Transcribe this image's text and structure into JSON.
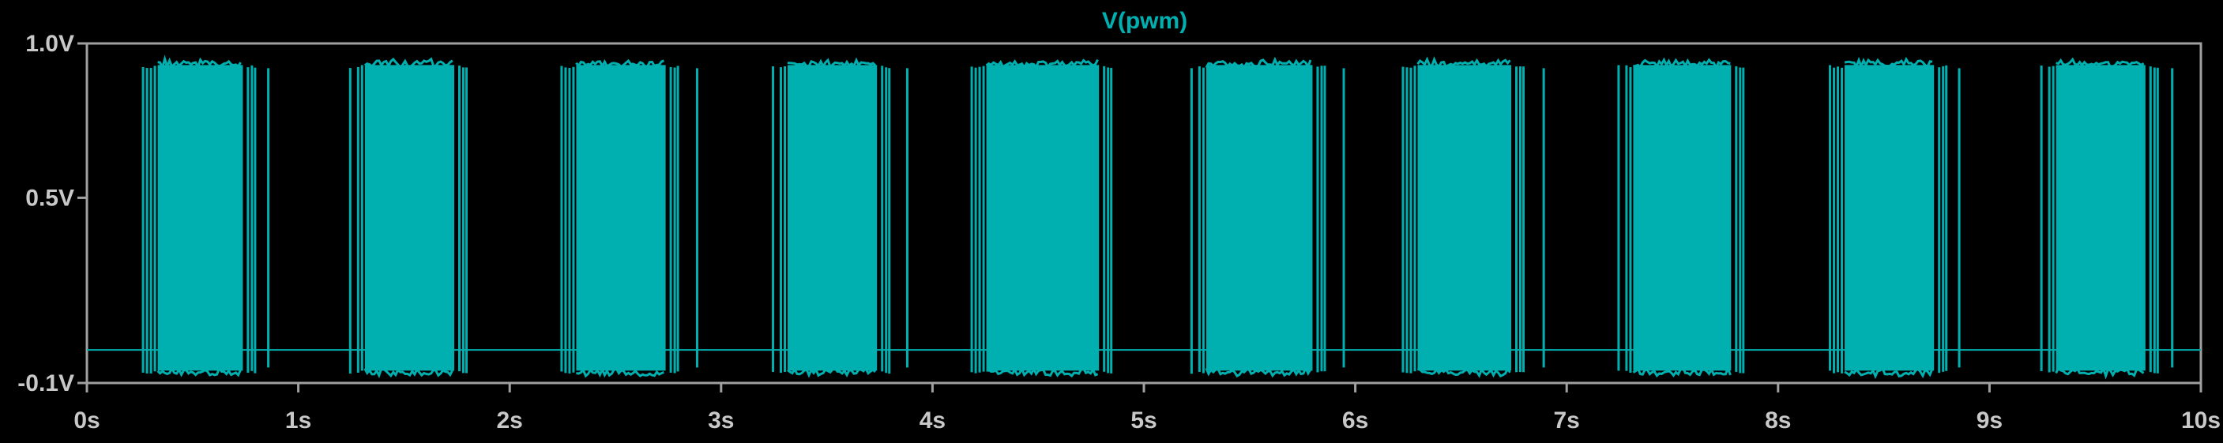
{
  "colors": {
    "background": "#000000",
    "trace": "#00b0b0",
    "axis": "#a0a0a0",
    "label": "#c8c8c8"
  },
  "chart_data": {
    "type": "line",
    "title": "V(pwm)",
    "xlabel": "",
    "ylabel": "",
    "xlim": [
      0,
      10
    ],
    "ylim": [
      -0.1,
      1.0
    ],
    "grid": false,
    "x_ticks": [
      "0s",
      "1s",
      "2s",
      "3s",
      "4s",
      "5s",
      "6s",
      "7s",
      "8s",
      "9s",
      "10s"
    ],
    "y_ticks": [
      {
        "value": 1.0,
        "label": "1.0V"
      },
      {
        "value": 0.5,
        "label": "0.5V"
      },
      {
        "value": -0.1,
        "label": "-0.1V"
      }
    ],
    "series": [
      {
        "name": "V(pwm)",
        "baseline_v": 0.007,
        "pulse_high_v": 0.93,
        "pulse_low_v": -0.06,
        "bursts": [
          {
            "start": 0.26,
            "end": 0.79
          },
          {
            "start": 1.24,
            "end": 1.79
          },
          {
            "start": 2.24,
            "end": 2.79
          },
          {
            "start": 3.24,
            "end": 3.79
          },
          {
            "start": 4.18,
            "end": 4.84
          },
          {
            "start": 5.22,
            "end": 5.85
          },
          {
            "start": 6.22,
            "end": 6.79
          },
          {
            "start": 7.24,
            "end": 7.83
          },
          {
            "start": 8.24,
            "end": 8.79
          },
          {
            "start": 9.24,
            "end": 9.79
          }
        ]
      }
    ]
  }
}
